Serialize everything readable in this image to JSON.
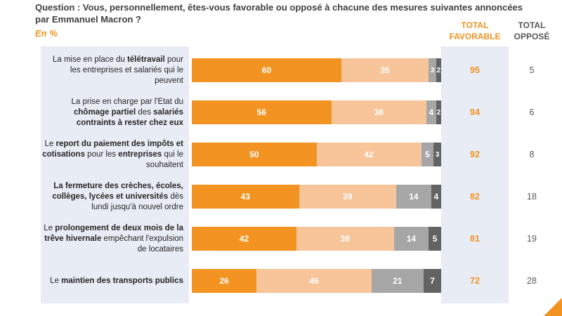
{
  "header": {
    "question": "Question : Vous, personnellement, êtes-vous favorable ou opposé à chacune des mesures suivantes annoncées par Emmanuel Macron ?",
    "unit": "En %",
    "total_favorable": "TOTAL\nFAVORABLE",
    "total_oppose": "TOTAL\nOPPOSÉ"
  },
  "colors": {
    "tres_favorable": "#f39322",
    "plutot_favorable": "#f8c49a",
    "plutot_oppose": "#a6a6a6",
    "tres_oppose": "#636363",
    "panel": "#e8ecf5",
    "favorable_text": "#f39322"
  },
  "chart_data": {
    "type": "bar",
    "orientation": "horizontal",
    "stacked": true,
    "xlim": [
      0,
      100
    ],
    "categories": [
      "La mise en place du télétravail pour les entreprises et salariés qui le peuvent",
      "La prise en charge par l'Etat du chômage partiel des salariés contraints à rester chez eux",
      "Le report du paiement des impôts et cotisations pour les entreprises qui le souhaitent",
      "La fermeture des crèches, écoles, collèges, lycées et universités dès lundi jusqu'à nouvel ordre",
      "Le prolongement de deux mois de la trêve hivernale empêchant l'expulsion de locataires",
      "Le maintien des transports publics"
    ],
    "series": [
      {
        "values": [
          60,
          56,
          50,
          43,
          42,
          26
        ]
      },
      {
        "values": [
          35,
          38,
          42,
          39,
          39,
          46
        ]
      },
      {
        "values": [
          3,
          4,
          5,
          14,
          14,
          21
        ]
      },
      {
        "values": [
          2,
          2,
          3,
          4,
          5,
          7
        ]
      }
    ],
    "total_favorable": [
      95,
      94,
      92,
      82,
      81,
      72
    ],
    "total_oppose": [
      5,
      6,
      8,
      18,
      19,
      28
    ]
  },
  "row_labels": [
    [
      "La mise en place du ",
      {
        "b": "télétravail"
      },
      " pour les entreprises et salariés qui le peuvent"
    ],
    [
      "La prise en charge par l'Etat du ",
      {
        "b": "chômage partiel"
      },
      " des ",
      {
        "b": "salariés contraints à rester chez eux"
      }
    ],
    [
      "Le ",
      {
        "b": "report du paiement des impôts et cotisations"
      },
      " pour les ",
      {
        "b": "entreprises"
      },
      " qui le souhaitent"
    ],
    [
      {
        "b": "La fermeture des crèches, écoles, collèges, lycées et universités"
      },
      " dès lundi jusqu'à nouvel ordre"
    ],
    [
      "Le ",
      {
        "b": "prolongement de deux mois de la trêve hivernale"
      },
      " empêchant l'expulsion de locataires"
    ],
    [
      "Le ",
      {
        "b": "maintien des transports publics"
      }
    ]
  ]
}
